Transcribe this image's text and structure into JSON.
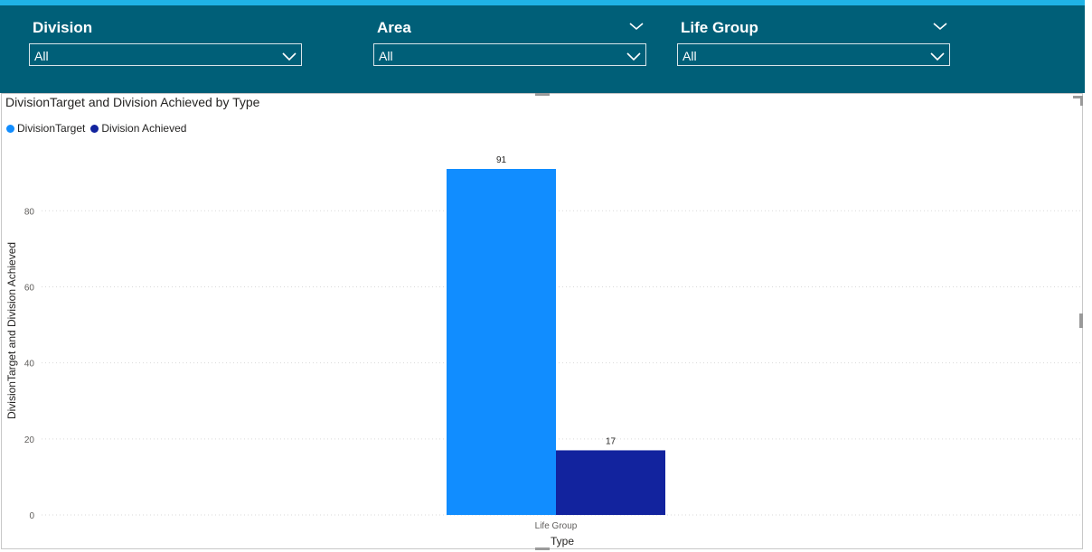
{
  "filters": [
    {
      "title": "Division",
      "value": "All",
      "has_header_chevron": false
    },
    {
      "title": "Area",
      "value": "All",
      "has_header_chevron": true
    },
    {
      "title": "Life Group",
      "value": "All",
      "has_header_chevron": true
    }
  ],
  "colors": {
    "header_bg": "#005f78",
    "accent_stripe": "#1fb3e6",
    "series_target": "#118dff",
    "series_achieved": "#12239e"
  },
  "chart_data": {
    "type": "bar",
    "title": "DivisionTarget and Division Achieved by Type",
    "xlabel": "Type",
    "ylabel": "DivisionTarget and Division Achieved",
    "categories": [
      "Life Group"
    ],
    "series": [
      {
        "name": "DivisionTarget",
        "values": [
          91
        ],
        "color": "#118dff"
      },
      {
        "name": "Division Achieved",
        "values": [
          17
        ],
        "color": "#12239e"
      }
    ],
    "ylim": [
      0,
      91
    ],
    "yticks": [
      0,
      20,
      40,
      60,
      80
    ],
    "grid": true,
    "legend_position": "top-left",
    "data_labels": true
  }
}
